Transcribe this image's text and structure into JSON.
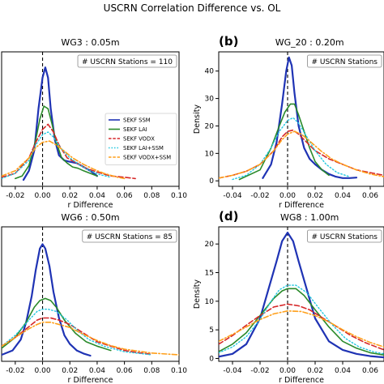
{
  "figure": {
    "title": "USCRN Correlation Difference vs. OL"
  },
  "colors": {
    "sekf_ssm": "#1f33b4",
    "sekf_lai": "#2a8a2a",
    "sekf_vodx": "#d62728",
    "sekf_lai_ssm": "#22c8e0",
    "sekf_vodx_ssm": "#ff9f1a"
  },
  "chart_data": [
    {
      "type": "line",
      "panel_letter": "",
      "title": "WG3 : 0.05m",
      "annotation": "# USCRN Stations = 110",
      "xlabel": "r Difference",
      "ylabel": "",
      "xlim": [
        -0.03,
        0.1
      ],
      "ylim": [
        -2,
        50
      ],
      "xticks": [
        -0.02,
        0.0,
        0.02,
        0.04,
        0.06,
        0.08,
        0.1
      ],
      "xtick_labels": [
        "-0.02",
        "0.00",
        "0.02",
        "0.04",
        "0.06",
        "0.08",
        "0.10"
      ],
      "yticks": [],
      "ytick_labels": [],
      "legend": {
        "placement": "center-right",
        "entries": [
          "SEKF SSM",
          "SEKF LAI",
          "SEKF VODX",
          "SEKF LAI+SSM",
          "SEKF VODX+SSM"
        ]
      },
      "series": [
        {
          "name": "SEKF SSM",
          "style": "solid",
          "color_key": "sekf_ssm",
          "x": [
            -0.014,
            -0.01,
            -0.006,
            -0.003,
            0.0,
            0.002,
            0.004,
            0.006,
            0.009,
            0.012,
            0.016,
            0.02,
            0.025,
            0.03,
            0.035,
            0.04
          ],
          "y": [
            0.5,
            4,
            12,
            28,
            40,
            44,
            40,
            28,
            16,
            10,
            8,
            7.5,
            7,
            5.5,
            4,
            2
          ]
        },
        {
          "name": "SEKF LAI",
          "style": "solid",
          "color_key": "sekf_lai",
          "x": [
            -0.02,
            -0.015,
            -0.01,
            -0.005,
            -0.002,
            0.001,
            0.004,
            0.007,
            0.01,
            0.014,
            0.018,
            0.022,
            0.026,
            0.03,
            0.035,
            0.04
          ],
          "y": [
            1,
            2,
            6,
            16,
            24,
            29,
            28,
            22,
            15,
            9,
            7,
            5.5,
            5,
            4,
            3,
            2
          ]
        },
        {
          "name": "SEKF VODX",
          "style": "dashed",
          "color_key": "sekf_vodx",
          "x": [
            -0.03,
            -0.02,
            -0.01,
            -0.005,
            0.0,
            0.004,
            0.008,
            0.012,
            0.018,
            0.025,
            0.032,
            0.04,
            0.05,
            0.06,
            0.068
          ],
          "y": [
            1.5,
            3,
            9,
            15,
            20,
            22,
            19,
            14,
            9,
            7,
            5,
            3.5,
            2,
            1.5,
            1
          ]
        },
        {
          "name": "SEKF LAI+SSM",
          "style": "dotted",
          "color_key": "sekf_lai_ssm",
          "x": [
            -0.03,
            -0.02,
            -0.01,
            -0.005,
            0.0,
            0.004,
            0.008,
            0.013,
            0.02,
            0.028,
            0.035,
            0.042,
            0.05
          ],
          "y": [
            1,
            3,
            8,
            14,
            18,
            19,
            17,
            13,
            9,
            6,
            4,
            2.5,
            1.5
          ]
        },
        {
          "name": "SEKF VODX+SSM",
          "style": "dashdot",
          "color_key": "sekf_vodx_ssm",
          "x": [
            -0.03,
            -0.02,
            -0.01,
            -0.005,
            0.0,
            0.005,
            0.01,
            0.015,
            0.022,
            0.03,
            0.038,
            0.045,
            0.055,
            0.06
          ],
          "y": [
            2,
            4,
            9,
            13,
            15,
            15.5,
            14,
            12,
            9,
            6.5,
            4.5,
            3,
            1.5,
            1
          ]
        }
      ]
    },
    {
      "type": "line",
      "panel_letter": "(b)",
      "title": "WG_20 : 0.20m",
      "annotation": "# USCRN Stations",
      "xlabel": "r Difference",
      "ylabel": "Density",
      "xlim": [
        -0.05,
        0.07
      ],
      "ylim": [
        -2,
        47
      ],
      "xticks": [
        -0.04,
        -0.02,
        0.0,
        0.02,
        0.04,
        0.06
      ],
      "xtick_labels": [
        "-0.04",
        "-0.02",
        "0.00",
        "0.02",
        "0.04",
        "0.06"
      ],
      "yticks": [
        0,
        10,
        20,
        30,
        40
      ],
      "ytick_labels": [
        "0",
        "10",
        "20",
        "30",
        "40"
      ],
      "legend": null,
      "series": [
        {
          "name": "SEKF SSM",
          "style": "solid",
          "color_key": "sekf_ssm",
          "x": [
            -0.018,
            -0.012,
            -0.008,
            -0.004,
            -0.001,
            0.001,
            0.003,
            0.005,
            0.008,
            0.012,
            0.016,
            0.02,
            0.025,
            0.03,
            0.035,
            0.04,
            0.045,
            0.05
          ],
          "y": [
            1,
            6,
            14,
            28,
            40,
            45,
            42,
            32,
            20,
            12,
            8,
            6,
            4,
            2.5,
            1.5,
            1,
            1,
            1.2
          ]
        },
        {
          "name": "SEKF LAI",
          "style": "solid",
          "color_key": "sekf_lai",
          "x": [
            -0.035,
            -0.02,
            -0.012,
            -0.006,
            -0.002,
            0.002,
            0.005,
            0.008,
            0.012,
            0.016,
            0.02,
            0.025,
            0.03
          ],
          "y": [
            0.5,
            4,
            12,
            20,
            25,
            28,
            28,
            24,
            18,
            12,
            7,
            4,
            2
          ]
        },
        {
          "name": "SEKF VODX",
          "style": "dashed",
          "color_key": "sekf_vodx",
          "x": [
            -0.05,
            -0.04,
            -0.03,
            -0.02,
            -0.01,
            -0.004,
            0.0,
            0.004,
            0.008,
            0.014,
            0.02,
            0.03,
            0.04,
            0.05,
            0.06,
            0.07
          ],
          "y": [
            1,
            2,
            3.5,
            6,
            11,
            16,
            18,
            18.5,
            17,
            14,
            11,
            8,
            6,
            4,
            3,
            2
          ]
        },
        {
          "name": "SEKF LAI+SSM",
          "style": "dotted",
          "color_key": "sekf_lai_ssm",
          "x": [
            -0.04,
            -0.03,
            -0.02,
            -0.012,
            -0.006,
            0.0,
            0.004,
            0.008,
            0.014,
            0.02,
            0.028,
            0.036,
            0.045
          ],
          "y": [
            0.5,
            2,
            6,
            12,
            18,
            22,
            23,
            21,
            16,
            11,
            6,
            3,
            1.5
          ]
        },
        {
          "name": "SEKF VODX+SSM",
          "style": "dashdot",
          "color_key": "sekf_vodx_ssm",
          "x": [
            -0.05,
            -0.04,
            -0.03,
            -0.02,
            -0.01,
            -0.004,
            0.0,
            0.005,
            0.01,
            0.016,
            0.024,
            0.032,
            0.04,
            0.05,
            0.06,
            0.07
          ],
          "y": [
            1,
            2,
            3.5,
            6,
            11,
            15,
            17,
            18,
            17,
            14.5,
            11,
            8,
            6,
            4,
            2.5,
            1.5
          ]
        }
      ]
    },
    {
      "type": "line",
      "panel_letter": "",
      "title": "WG6 : 0.50m",
      "annotation": "# USCRN Stations = 85",
      "xlabel": "r Difference",
      "ylabel": "",
      "xlim": [
        -0.03,
        0.1
      ],
      "ylim": [
        -1,
        30
      ],
      "xticks": [
        -0.02,
        0.0,
        0.02,
        0.04,
        0.06,
        0.08,
        0.1
      ],
      "xtick_labels": [
        "-0.02",
        "0.00",
        "0.02",
        "0.04",
        "0.06",
        "0.08",
        "0.10"
      ],
      "yticks": [],
      "ytick_labels": [],
      "legend": null,
      "series": [
        {
          "name": "SEKF SSM",
          "style": "solid",
          "color_key": "sekf_ssm",
          "x": [
            -0.03,
            -0.022,
            -0.016,
            -0.012,
            -0.008,
            -0.005,
            -0.002,
            0.0,
            0.002,
            0.005,
            0.008,
            0.012,
            0.016,
            0.02,
            0.025,
            0.03,
            0.035
          ],
          "y": [
            0.5,
            1.5,
            4,
            8,
            14,
            20,
            25,
            26,
            25,
            21,
            15,
            9,
            5,
            3,
            1.5,
            0.8,
            0.3
          ]
        },
        {
          "name": "SEKF LAI",
          "style": "solid",
          "color_key": "sekf_lai",
          "x": [
            -0.03,
            -0.02,
            -0.012,
            -0.006,
            -0.002,
            0.002,
            0.006,
            0.01,
            0.016,
            0.024,
            0.032,
            0.04,
            0.05
          ],
          "y": [
            2,
            4.5,
            8,
            11.5,
            13,
            13.5,
            13,
            11.5,
            8.5,
            5.5,
            3.5,
            2.5,
            1.5
          ]
        },
        {
          "name": "SEKF VODX",
          "style": "dashed",
          "color_key": "sekf_vodx",
          "x": [
            -0.03,
            -0.02,
            -0.01,
            -0.004,
            0.0,
            0.006,
            0.012,
            0.02,
            0.03,
            0.04,
            0.05,
            0.06,
            0.07,
            0.08
          ],
          "y": [
            2.5,
            4.5,
            7,
            8.5,
            9,
            9,
            8.5,
            7.5,
            5.5,
            3.5,
            2.5,
            1.5,
            1,
            0.6
          ]
        },
        {
          "name": "SEKF LAI+SSM",
          "style": "dotted",
          "color_key": "sekf_lai_ssm",
          "x": [
            -0.03,
            -0.02,
            -0.01,
            -0.004,
            0.0,
            0.004,
            0.01,
            0.018,
            0.026,
            0.034,
            0.045,
            0.06,
            0.08
          ],
          "y": [
            2.5,
            5,
            8.5,
            10.5,
            11,
            11,
            10.5,
            8.5,
            6,
            4,
            2.5,
            1.2,
            0.5
          ]
        },
        {
          "name": "SEKF VODX+SSM",
          "style": "dashdot",
          "color_key": "sekf_vodx_ssm",
          "x": [
            -0.03,
            -0.02,
            -0.01,
            -0.004,
            0.0,
            0.006,
            0.012,
            0.02,
            0.03,
            0.04,
            0.05,
            0.06,
            0.08,
            0.1
          ],
          "y": [
            2.5,
            4.5,
            6.5,
            7.5,
            8,
            8,
            7.5,
            6.8,
            5.2,
            3.8,
            2.6,
            1.8,
            0.9,
            0.5
          ]
        }
      ]
    },
    {
      "type": "line",
      "panel_letter": "(d)",
      "title": "WG8 : 1.00m",
      "annotation": "# USCRN Stations",
      "xlabel": "r Difference",
      "ylabel": "Density",
      "xlim": [
        -0.05,
        0.07
      ],
      "ylim": [
        -0.5,
        23
      ],
      "xticks": [
        -0.04,
        -0.02,
        0.0,
        0.02,
        0.04,
        0.06
      ],
      "xtick_labels": [
        "-0.04",
        "-0.02",
        "0.00",
        "0.02",
        "0.04",
        "0.06"
      ],
      "yticks": [
        0,
        5,
        10,
        15,
        20
      ],
      "ytick_labels": [
        "0",
        "5",
        "10",
        "15",
        "20"
      ],
      "legend": null,
      "series": [
        {
          "name": "SEKF SSM",
          "style": "solid",
          "color_key": "sekf_ssm",
          "x": [
            -0.05,
            -0.04,
            -0.03,
            -0.02,
            -0.014,
            -0.008,
            -0.004,
            0.0,
            0.004,
            0.008,
            0.014,
            0.02,
            0.03,
            0.04,
            0.05,
            0.06,
            0.07
          ],
          "y": [
            0.3,
            0.8,
            2.5,
            7,
            12,
            17,
            20.5,
            22,
            20.5,
            17,
            12,
            7,
            3,
            1.5,
            0.8,
            0.4,
            0.2
          ]
        },
        {
          "name": "SEKF LAI",
          "style": "solid",
          "color_key": "sekf_lai",
          "x": [
            -0.05,
            -0.04,
            -0.03,
            -0.02,
            -0.01,
            -0.004,
            0.0,
            0.006,
            0.012,
            0.02,
            0.03,
            0.04,
            0.05,
            0.06,
            0.07
          ],
          "y": [
            1.2,
            2.5,
            4.5,
            7.5,
            10.5,
            11.8,
            12.2,
            12.2,
            11,
            8.5,
            5.5,
            3,
            1.8,
            1,
            0.6
          ]
        },
        {
          "name": "SEKF VODX",
          "style": "dashed",
          "color_key": "sekf_vodx",
          "x": [
            -0.05,
            -0.04,
            -0.03,
            -0.02,
            -0.01,
            0.0,
            0.008,
            0.016,
            0.026,
            0.036,
            0.046,
            0.056,
            0.07
          ],
          "y": [
            2.5,
            4,
            5.8,
            7.5,
            9,
            9.5,
            9.2,
            8.5,
            7,
            5.5,
            4,
            2.8,
            1.5
          ]
        },
        {
          "name": "SEKF LAI+SSM",
          "style": "dotted",
          "color_key": "sekf_lai_ssm",
          "x": [
            -0.05,
            -0.04,
            -0.03,
            -0.02,
            -0.012,
            -0.006,
            0.0,
            0.006,
            0.014,
            0.022,
            0.032,
            0.042,
            0.052,
            0.062,
            0.07
          ],
          "y": [
            1,
            2,
            3.8,
            6.8,
            10,
            12,
            12.8,
            12.8,
            11.5,
            9,
            6,
            3.5,
            2,
            1.2,
            0.8
          ]
        },
        {
          "name": "SEKF VODX+SSM",
          "style": "dashdot",
          "color_key": "sekf_vodx_ssm",
          "x": [
            -0.05,
            -0.04,
            -0.03,
            -0.02,
            -0.01,
            0.0,
            0.01,
            0.02,
            0.03,
            0.04,
            0.05,
            0.06,
            0.07
          ],
          "y": [
            3,
            4.2,
            5.5,
            6.8,
            7.8,
            8.3,
            8.2,
            7.5,
            6.4,
            5,
            3.8,
            2.8,
            2
          ]
        }
      ]
    }
  ]
}
